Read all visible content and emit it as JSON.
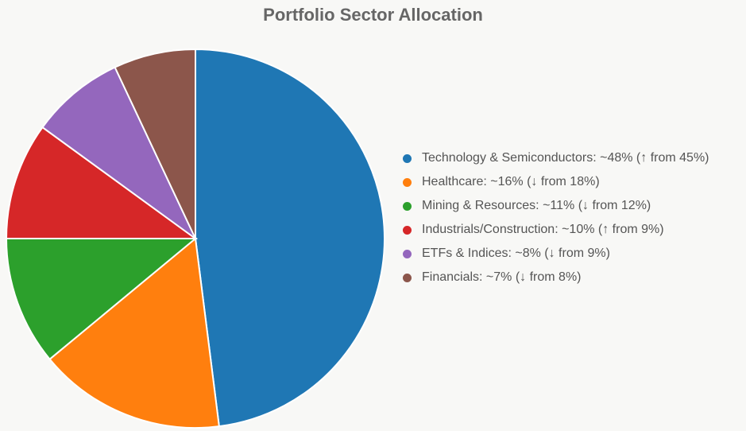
{
  "chart_data": {
    "type": "pie",
    "title": "Portfolio Sector Allocation",
    "slices": [
      {
        "label": "Technology & Semiconductors: ~48% (↑ from 45%)",
        "value": 48,
        "color": "#1f77b4"
      },
      {
        "label": "Healthcare: ~16% (↓ from 18%)",
        "value": 16,
        "color": "#ff7f0e"
      },
      {
        "label": "Mining & Resources: ~11% (↓ from 12%)",
        "value": 11,
        "color": "#2ca02c"
      },
      {
        "label": "Industrials/Construction: ~10% (↑ from 9%)",
        "value": 10,
        "color": "#d62728"
      },
      {
        "label": "ETFs & Indices: ~8% (↓ from 9%)",
        "value": 8,
        "color": "#9467bd"
      },
      {
        "label": "Financials: ~7% (↓ from 8%)",
        "value": 7,
        "color": "#8c564b"
      }
    ],
    "start_angle": "top",
    "direction": "clockwise",
    "legend_position": "right"
  }
}
